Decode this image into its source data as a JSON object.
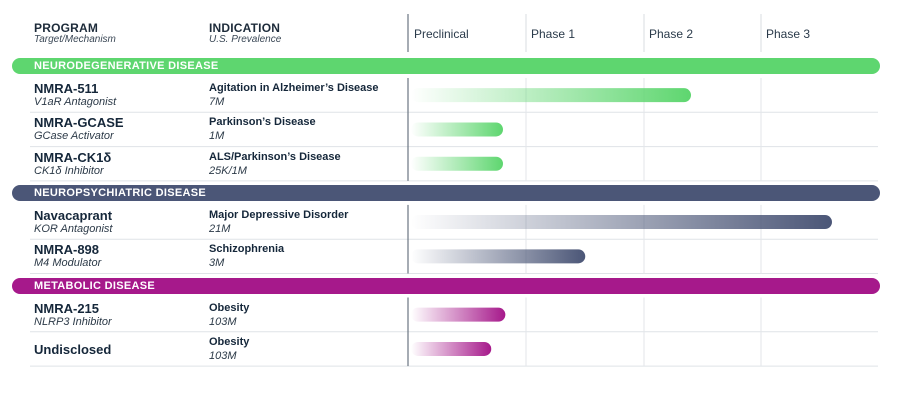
{
  "header": {
    "program_label": "PROGRAM",
    "program_sub": "Target/Mechanism",
    "indication_label": "INDICATION",
    "indication_sub": "U.S. Prevalence"
  },
  "chart_data": {
    "type": "bar",
    "orientation": "horizontal",
    "phases": [
      "Preclinical",
      "Phase 1",
      "Phase 2",
      "Phase 3"
    ],
    "xlim": [
      0,
      4
    ],
    "categories": [
      {
        "label": "NEURODEGENERATIVE DISEASE",
        "color": "#5ed66f",
        "programs": [
          {
            "name": "NMRA-511",
            "mechanism": "V1aR Antagonist",
            "indication": "Agitation in Alzheimer’s Disease",
            "prevalence": "7M",
            "progress": 2.4
          },
          {
            "name": "NMRA-GCASE",
            "mechanism": "GCase Activator",
            "indication": "Parkinson’s Disease",
            "prevalence": "1M",
            "progress": 0.8
          },
          {
            "name": "NMRA-CK1δ",
            "mechanism": "CK1δ Inhibitor",
            "indication": "ALS/Parkinson’s Disease",
            "prevalence": "25K/1M",
            "progress": 0.8
          }
        ]
      },
      {
        "label": "NEUROPSYCHIATRIC DISEASE",
        "color": "#4b5677",
        "programs": [
          {
            "name": "Navacaprant",
            "mechanism": "KOR Antagonist",
            "indication": "Major Depressive Disorder",
            "prevalence": "21M",
            "progress": 3.6
          },
          {
            "name": "NMRA-898",
            "mechanism": "M4 Modulator",
            "indication": "Schizophrenia",
            "prevalence": "3M",
            "progress": 1.5
          }
        ]
      },
      {
        "label": "METABOLIC DISEASE",
        "color": "#a6198b",
        "programs": [
          {
            "name": "NMRA-215",
            "mechanism": "NLRP3 Inhibitor",
            "indication": "Obesity",
            "prevalence": "103M",
            "progress": 0.82
          },
          {
            "name": "Undisclosed",
            "mechanism": "",
            "indication": "Obesity",
            "prevalence": "103M",
            "progress": 0.7
          }
        ]
      }
    ]
  }
}
